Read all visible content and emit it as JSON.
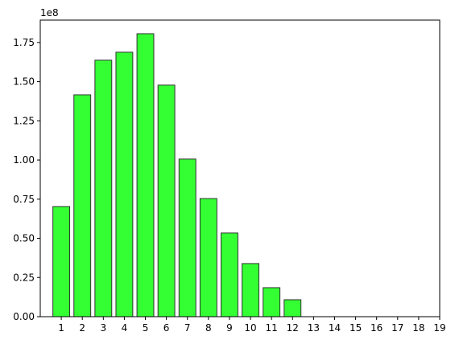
{
  "chart_data": {
    "type": "bar",
    "y_offset_label": "1e8",
    "x": [
      1,
      2,
      3,
      4,
      5,
      6,
      7,
      8,
      9,
      10,
      11,
      12
    ],
    "values": [
      0.703,
      1.416,
      1.637,
      1.688,
      1.806,
      1.478,
      1.006,
      0.754,
      0.534,
      0.339,
      0.185,
      0.108
    ],
    "color": "#33ff33",
    "edgecolor": "#333333",
    "bar_width": 0.8,
    "xlim": [
      0,
      19
    ],
    "xticks": [
      1,
      2,
      3,
      4,
      5,
      6,
      7,
      8,
      9,
      10,
      11,
      12,
      13,
      14,
      15,
      16,
      17,
      18,
      19
    ],
    "ylim": [
      0,
      1.893
    ],
    "yticks": [
      {
        "value": 0,
        "label": "0.00"
      },
      0.25,
      {
        "value": 0.5,
        "label": "0.50"
      },
      0.75,
      {
        "value": 1,
        "label": "1.00"
      },
      1.25,
      {
        "value": 1.5,
        "label": "1.50"
      },
      1.75
    ]
  }
}
